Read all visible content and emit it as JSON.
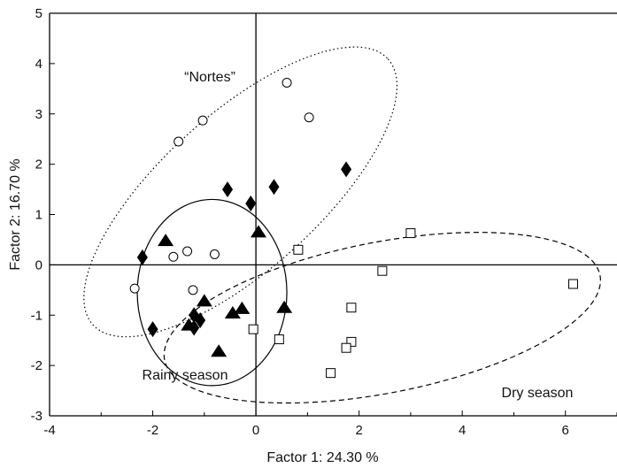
{
  "chart_data": {
    "type": "scatter",
    "title": "",
    "xlabel": "Factor 1: 24.30 %",
    "ylabel": "Factor 2: 16.70 %",
    "xlim": [
      -4,
      7
    ],
    "ylim": [
      -3,
      5
    ],
    "x_ticks": [
      -4,
      -2,
      0,
      2,
      4,
      6
    ],
    "y_ticks": [
      -3,
      -2,
      -1,
      0,
      1,
      2,
      3,
      4,
      5
    ],
    "grid": false,
    "series": [
      {
        "marker": "open-circle",
        "points": [
          {
            "x": 0.6,
            "y": 3.62
          },
          {
            "x": 1.03,
            "y": 2.93
          },
          {
            "x": -1.03,
            "y": 2.87
          },
          {
            "x": -1.5,
            "y": 2.45
          },
          {
            "x": -1.33,
            "y": 0.27
          },
          {
            "x": -1.6,
            "y": 0.16
          },
          {
            "x": -0.8,
            "y": 0.21
          },
          {
            "x": -2.35,
            "y": -0.47
          },
          {
            "x": -1.22,
            "y": -0.5
          }
        ]
      },
      {
        "marker": "filled-diamond",
        "points": [
          {
            "x": 1.75,
            "y": 1.9
          },
          {
            "x": 0.35,
            "y": 1.55
          },
          {
            "x": -0.55,
            "y": 1.5
          },
          {
            "x": -0.1,
            "y": 1.22
          },
          {
            "x": -2.2,
            "y": 0.15
          },
          {
            "x": -1.2,
            "y": -1.0
          },
          {
            "x": -1.08,
            "y": -1.1
          },
          {
            "x": -1.2,
            "y": -1.25
          },
          {
            "x": -2.0,
            "y": -1.28
          }
        ]
      },
      {
        "marker": "filled-triangle",
        "points": [
          {
            "x": -1.75,
            "y": 0.48
          },
          {
            "x": 0.05,
            "y": 0.65
          },
          {
            "x": -1.0,
            "y": -0.72
          },
          {
            "x": -0.27,
            "y": -0.87
          },
          {
            "x": -0.45,
            "y": -0.96
          },
          {
            "x": 0.55,
            "y": -0.85
          },
          {
            "x": -1.3,
            "y": -1.2
          },
          {
            "x": -0.72,
            "y": -1.72
          }
        ]
      },
      {
        "marker": "open-square",
        "points": [
          {
            "x": 3.0,
            "y": 0.63
          },
          {
            "x": 0.82,
            "y": 0.3
          },
          {
            "x": 2.45,
            "y": -0.12
          },
          {
            "x": 6.15,
            "y": -0.38
          },
          {
            "x": 1.85,
            "y": -0.85
          },
          {
            "x": -0.05,
            "y": -1.28
          },
          {
            "x": 0.45,
            "y": -1.48
          },
          {
            "x": 1.85,
            "y": -1.53
          },
          {
            "x": 1.75,
            "y": -1.65
          },
          {
            "x": 1.45,
            "y": -2.15
          }
        ]
      }
    ],
    "ellipses": [
      {
        "label": "“Nortes”",
        "style": "dotted",
        "cx": -0.3,
        "cy": 1.45,
        "rx": 3.85,
        "ry": 1.55,
        "angle_deg": 42
      },
      {
        "label": "Rainy season",
        "style": "solid",
        "cx": -0.85,
        "cy": -0.55,
        "rx": 1.45,
        "ry": 1.85,
        "angle_deg": 0
      },
      {
        "label": "Dry season",
        "style": "dashed",
        "cx": 2.45,
        "cy": -1.05,
        "rx": 4.3,
        "ry": 1.5,
        "angle_deg": 11
      }
    ],
    "annotations": [
      "“Nortes”",
      "Rainy season",
      "Dry season"
    ]
  }
}
